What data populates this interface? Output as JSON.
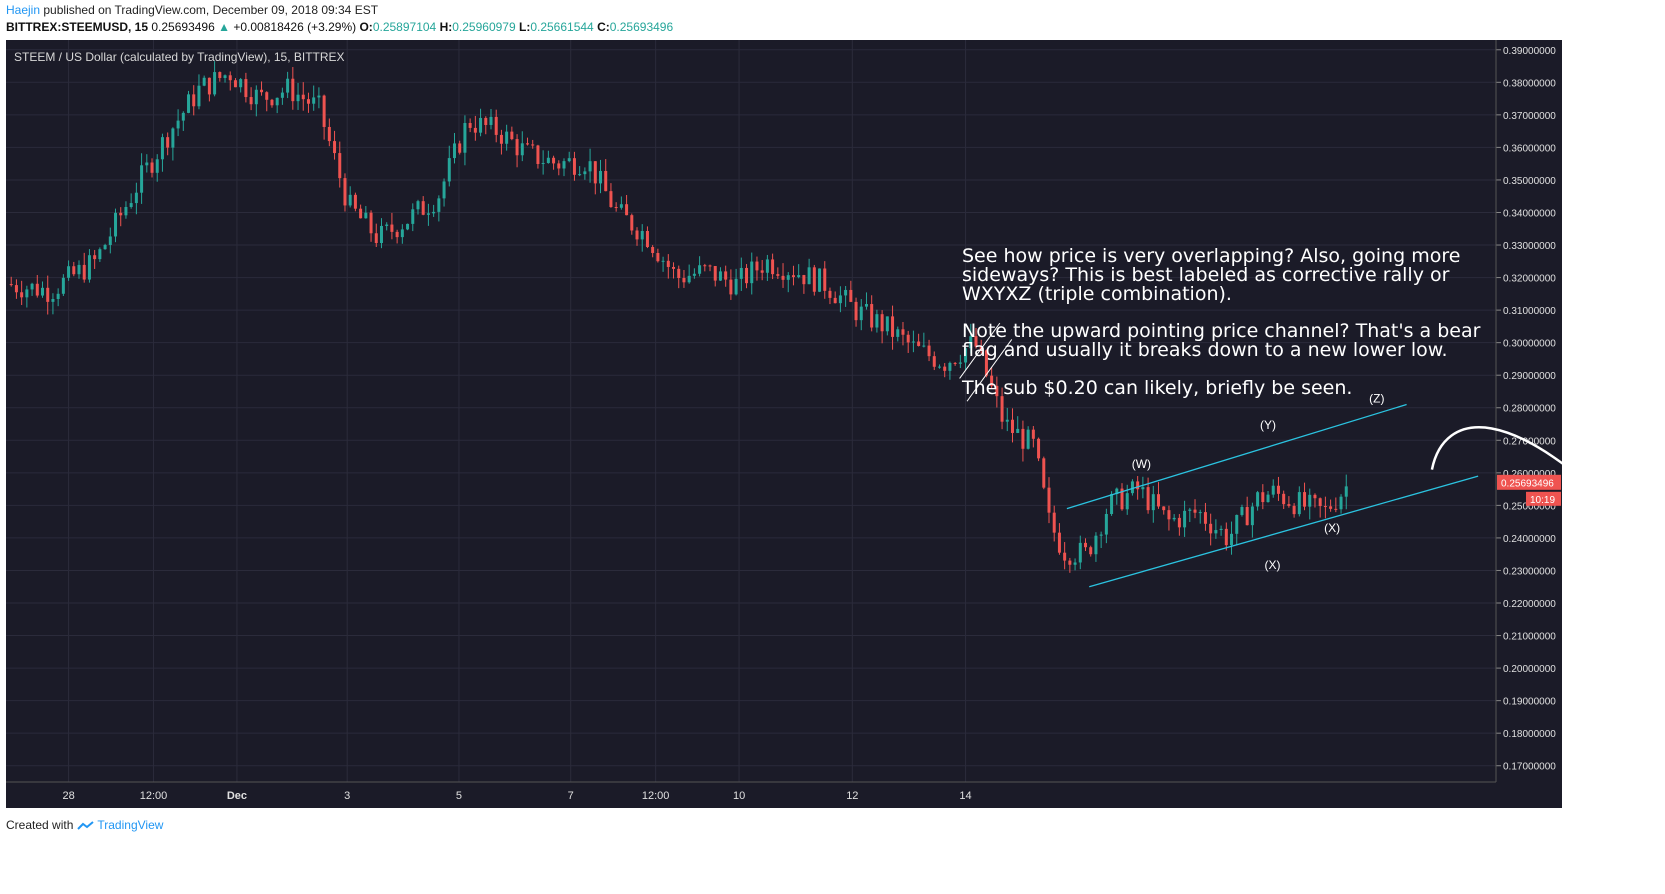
{
  "header": {
    "author": "Haejin",
    "published": "published on TradingView.com, December 09, 2018 09:34 EST",
    "symbol": "BITTREX:STEEMUSD, 15",
    "last": "0.25693496",
    "change_arrow": "▲",
    "change": "+0.00818426 (+3.29%)",
    "open_label": "O:",
    "open": "0.25897104",
    "high_label": "H:",
    "high": "0.25960979",
    "low_label": "L:",
    "low": "0.25661544",
    "close_label": "C:",
    "close": "0.25693496"
  },
  "footer": {
    "created_with": "Created with",
    "brand": "TradingView"
  },
  "annotations": {
    "paragraph1": "See how price is very overlapping? Also, going more sideways? This is best labeled as corrective rally or WXYXZ (triple combination).",
    "paragraph2": "Note the upward pointing price channel? That's a bear flag and usually it breaks down to a new lower low.",
    "paragraph3": "The sub $0.20 can likely, briefly be seen."
  },
  "colors": {
    "background": "#1b1b28",
    "grid": "#2b2b3b",
    "up": "#26a69a",
    "down": "#ef5350",
    "channel": "#2bc3e0",
    "price_tag": "#ef5350",
    "text": "#ffffff"
  },
  "chart_data": {
    "type": "candlestick",
    "title": "STEEM / US Dollar (calculated by TradingView), 15, BITTREX",
    "y_ticks": [
      0.39,
      0.38,
      0.37,
      0.36,
      0.35,
      0.34,
      0.33,
      0.32,
      0.31,
      0.3,
      0.29,
      0.28,
      0.27,
      0.26,
      0.25,
      0.24,
      0.23,
      0.22,
      0.21,
      0.2,
      0.19,
      0.18,
      0.17
    ],
    "y_tick_labels": [
      "0.39000000",
      "0.38000000",
      "0.37000000",
      "0.36000000",
      "0.35000000",
      "0.34000000",
      "0.33000000",
      "0.32000000",
      "0.31000000",
      "0.30000000",
      "0.29000000",
      "0.28000000",
      "0.27000000",
      "0.26000000",
      "0.25000000",
      "0.24000000",
      "0.23000000",
      "0.22000000",
      "0.21000000",
      "0.20000000",
      "0.19000000",
      "0.18000000",
      "0.17000000"
    ],
    "ylim": [
      0.165,
      0.393
    ],
    "x_labels": [
      "28",
      "12:00",
      "Dec",
      "3",
      "5",
      "7",
      "12:00",
      "10",
      "12",
      "14"
    ],
    "last_price_label": "0.25693496",
    "countdown_label": "10:19",
    "price_path": [
      [
        0,
        0.318
      ],
      [
        3,
        0.316
      ],
      [
        6,
        0.325
      ],
      [
        9,
        0.35
      ],
      [
        11,
        0.365
      ],
      [
        13,
        0.378
      ],
      [
        15,
        0.383
      ],
      [
        17,
        0.375
      ],
      [
        19,
        0.378
      ],
      [
        21,
        0.372
      ],
      [
        23,
        0.342
      ],
      [
        25,
        0.332
      ],
      [
        27,
        0.338
      ],
      [
        29,
        0.345
      ],
      [
        31,
        0.368
      ],
      [
        33,
        0.365
      ],
      [
        35,
        0.358
      ],
      [
        37,
        0.355
      ],
      [
        39,
        0.356
      ],
      [
        41,
        0.34
      ],
      [
        43,
        0.333
      ],
      [
        45,
        0.32
      ],
      [
        47,
        0.322
      ],
      [
        49,
        0.318
      ],
      [
        51,
        0.325
      ],
      [
        53,
        0.322
      ],
      [
        55,
        0.318
      ],
      [
        57,
        0.31
      ],
      [
        59,
        0.305
      ],
      [
        61,
        0.298
      ],
      [
        63,
        0.294
      ],
      [
        65,
        0.3
      ],
      [
        67,
        0.275
      ],
      [
        69,
        0.268
      ],
      [
        70,
        0.245
      ],
      [
        71,
        0.236
      ],
      [
        72.5,
        0.235
      ],
      [
        74,
        0.25
      ],
      [
        76,
        0.255
      ],
      [
        78,
        0.245
      ],
      [
        80,
        0.248
      ],
      [
        82,
        0.24
      ],
      [
        84,
        0.252
      ],
      [
        85,
        0.254
      ],
      [
        87,
        0.25
      ],
      [
        88.5,
        0.248
      ],
      [
        90,
        0.256
      ]
    ],
    "wave_labels": [
      {
        "label": "(W)",
        "x": 76.2,
        "y": 0.2615
      },
      {
        "label": "(X)",
        "x": 85.0,
        "y": 0.2305
      },
      {
        "label": "(Y)",
        "x": 84.7,
        "y": 0.2735
      },
      {
        "label": "(X)",
        "x": 89.0,
        "y": 0.2418
      },
      {
        "label": "(Z)",
        "x": 92.0,
        "y": 0.2816
      }
    ],
    "channel_lines": [
      {
        "x1": 71.2,
        "y1": 0.249,
        "x2": 94.0,
        "y2": 0.281
      },
      {
        "x1": 72.7,
        "y1": 0.225,
        "x2": 98.8,
        "y2": 0.259
      }
    ],
    "small_flag": [
      {
        "x1": 64,
        "y1": 0.289,
        "x2": 66.7,
        "y2": 0.306
      },
      {
        "x1": 64.5,
        "y1": 0.282,
        "x2": 67.5,
        "y2": 0.301
      }
    ]
  }
}
